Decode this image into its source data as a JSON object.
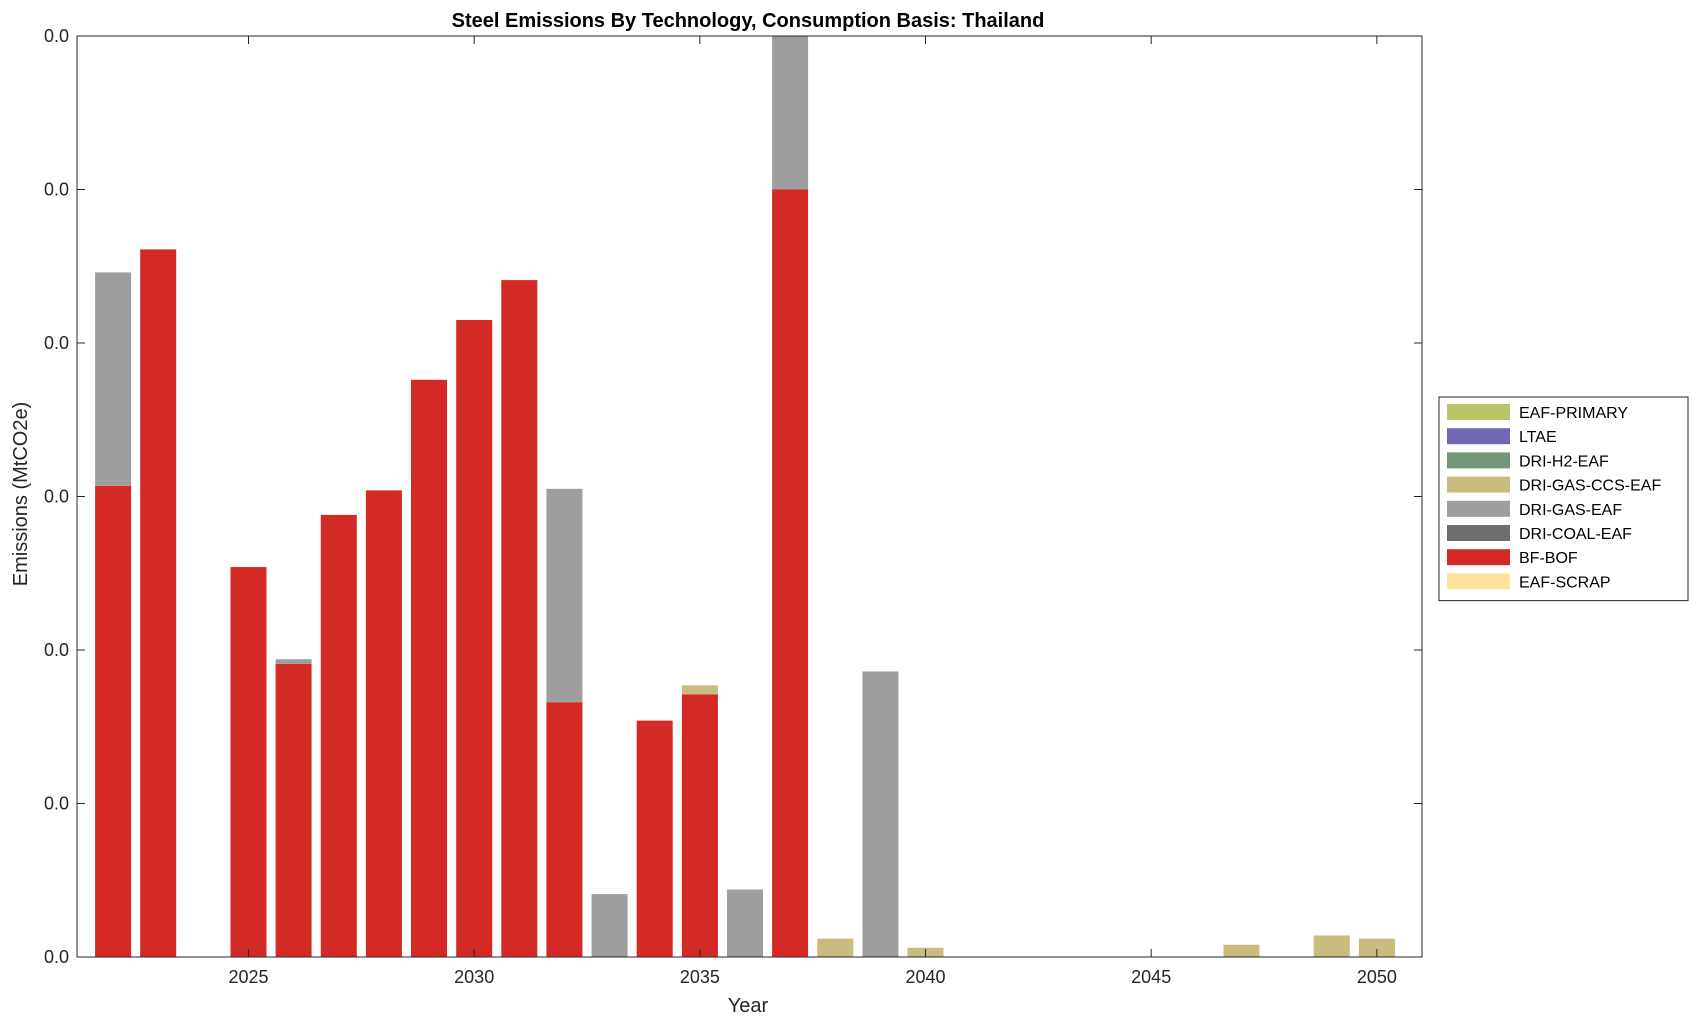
{
  "chart_data": {
    "type": "bar",
    "stacked": true,
    "title": "Steel Emissions By Technology, Consumption Basis: Thailand",
    "xlabel": "Year",
    "ylabel": "Emissions (MtCO2e)",
    "xlim": [
      2021.2,
      2051.0
    ],
    "ylim": [
      0,
      6
    ],
    "xticks": [
      2025,
      2030,
      2035,
      2040,
      2045,
      2050
    ],
    "yticks": [
      0,
      1,
      2,
      3,
      4,
      5,
      6
    ],
    "ytick_labels": [
      "0.0",
      "0.0",
      "0.0",
      "0.0",
      "0.0",
      "0.0",
      "0.0"
    ],
    "legend_position": "right",
    "categories": [
      2022,
      2023,
      2024,
      2025,
      2026,
      2027,
      2028,
      2029,
      2030,
      2031,
      2032,
      2033,
      2034,
      2035,
      2036,
      2037,
      2038,
      2039,
      2040,
      2041,
      2042,
      2043,
      2044,
      2045,
      2046,
      2047,
      2048,
      2049,
      2050
    ],
    "series": [
      {
        "name": "EAF-SCRAP",
        "color": "#fde49a",
        "values": [
          0,
          0,
          0,
          0,
          0,
          0,
          0,
          0,
          0,
          0,
          0,
          0,
          0,
          0,
          0,
          0,
          0,
          0,
          0,
          0,
          0,
          0,
          0,
          0,
          0,
          0,
          0,
          0,
          0
        ]
      },
      {
        "name": "BF-BOF",
        "color": "#d32a25",
        "values": [
          3.07,
          4.61,
          0,
          2.54,
          1.91,
          2.88,
          3.04,
          3.76,
          4.15,
          4.41,
          1.66,
          0,
          1.54,
          1.71,
          0,
          5.0,
          0,
          0,
          0,
          0,
          0,
          0,
          0,
          0,
          0,
          0,
          0,
          0,
          0
        ]
      },
      {
        "name": "DRI-COAL-EAF",
        "color": "#6f6f6f",
        "values": [
          0,
          0,
          0,
          0,
          0,
          0,
          0,
          0,
          0,
          0,
          0,
          0,
          0,
          0,
          0,
          0,
          0,
          0,
          0,
          0,
          0,
          0,
          0,
          0,
          0,
          0,
          0,
          0,
          0
        ]
      },
      {
        "name": "DRI-GAS-EAF",
        "color": "#9e9e9e",
        "values": [
          1.39,
          0,
          0,
          0,
          0.03,
          0,
          0,
          0,
          0,
          0,
          1.39,
          0.41,
          0,
          0,
          0.44,
          1.0,
          0,
          1.86,
          0,
          0,
          0,
          0,
          0,
          0,
          0,
          0,
          0,
          0,
          0
        ]
      },
      {
        "name": "DRI-GAS-CCS-EAF",
        "color": "#c8bc7e",
        "values": [
          0,
          0,
          0,
          0,
          0,
          0,
          0,
          0,
          0,
          0,
          0,
          0,
          0,
          0.06,
          0,
          0,
          0.12,
          0,
          0.06,
          0,
          0,
          0,
          0,
          0,
          0,
          0.08,
          0,
          0.14,
          0.12
        ]
      },
      {
        "name": "DRI-H2-EAF",
        "color": "#72987a",
        "values": [
          0,
          0,
          0,
          0,
          0,
          0,
          0,
          0,
          0,
          0,
          0,
          0,
          0,
          0,
          0,
          0,
          0,
          0,
          0,
          0,
          0,
          0,
          0,
          0,
          0,
          0,
          0,
          0,
          0
        ]
      },
      {
        "name": "LTAE",
        "color": "#7269b5",
        "values": [
          0,
          0,
          0,
          0,
          0,
          0,
          0,
          0,
          0,
          0,
          0,
          0,
          0,
          0,
          0,
          0,
          0,
          0,
          0,
          0,
          0,
          0,
          0,
          0,
          0,
          0,
          0,
          0,
          0
        ]
      },
      {
        "name": "EAF-PRIMARY",
        "color": "#bcc46a",
        "values": [
          0,
          0,
          0,
          0,
          0,
          0,
          0,
          0,
          0,
          0,
          0,
          0,
          0,
          0,
          0,
          0,
          0,
          0,
          0,
          0,
          0,
          0,
          0,
          0,
          0,
          0,
          0,
          0,
          0
        ]
      }
    ],
    "legend_order": [
      "EAF-PRIMARY",
      "LTAE",
      "DRI-H2-EAF",
      "DRI-GAS-CCS-EAF",
      "DRI-GAS-EAF",
      "DRI-COAL-EAF",
      "BF-BOF",
      "EAF-SCRAP"
    ]
  }
}
